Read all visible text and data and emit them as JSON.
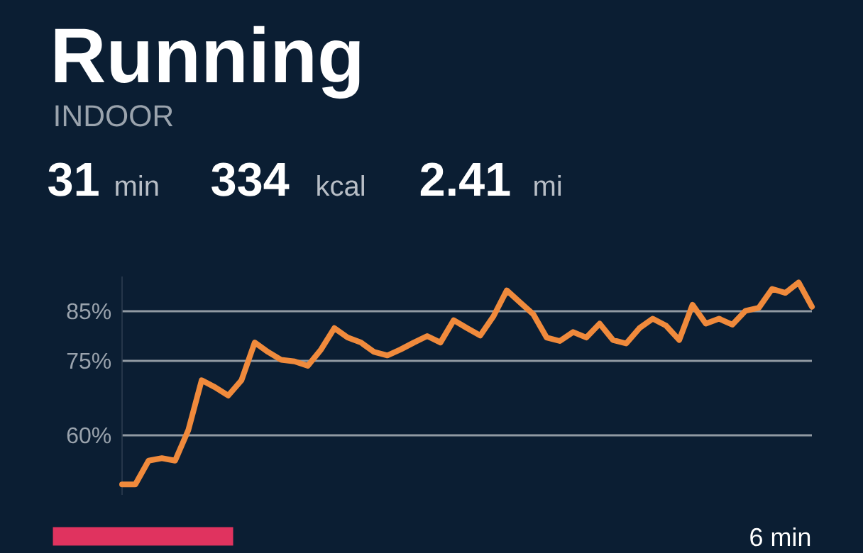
{
  "chart_data": {
    "type": "line",
    "title": "Running",
    "subtitle": "INDOOR",
    "annotations": [
      "31",
      "min",
      "334",
      "kcal",
      "2.41",
      "mi",
      "6 min"
    ],
    "categories": [
      null,
      null,
      null,
      null,
      null,
      null,
      null,
      null,
      null,
      null,
      null,
      null,
      null,
      null,
      null,
      null,
      null,
      null,
      null,
      null,
      null,
      null,
      null,
      null,
      null,
      null,
      null,
      null,
      null,
      null,
      null,
      null,
      null,
      null,
      null,
      null,
      null,
      null,
      null,
      null,
      null,
      null,
      null,
      null,
      null,
      null,
      null,
      null,
      null,
      null,
      null,
      null,
      null
    ],
    "series": [
      {
        "color": "#f08a3c",
        "values": [
          50.1,
          50.1,
          54.9,
          55.4,
          54.9,
          61.1,
          71.1,
          69.7,
          68.0,
          71.1,
          78.7,
          76.8,
          75.2,
          74.9,
          74.0,
          77.3,
          81.6,
          79.7,
          78.7,
          76.8,
          76.1,
          77.3,
          78.7,
          80.0,
          78.7,
          83.2,
          81.6,
          80.1,
          84.0,
          89.2,
          86.8,
          84.4,
          79.7,
          79.0,
          80.8,
          79.7,
          82.5,
          79.2,
          78.5,
          81.6,
          83.5,
          82.1,
          79.2,
          86.3,
          82.5,
          83.5,
          82.3,
          85.1,
          85.7,
          89.5,
          88.7,
          90.8,
          85.9
        ]
      }
    ],
    "ylim": [
      48,
      92
    ],
    "yticks": [
      {
        "value": 60,
        "label": "60%"
      },
      {
        "value": 75,
        "label": "75%"
      },
      {
        "value": 85,
        "label": "85%"
      }
    ],
    "grid": "y",
    "tick_labels": "y",
    "marker": "none",
    "line_style": "solid"
  }
}
